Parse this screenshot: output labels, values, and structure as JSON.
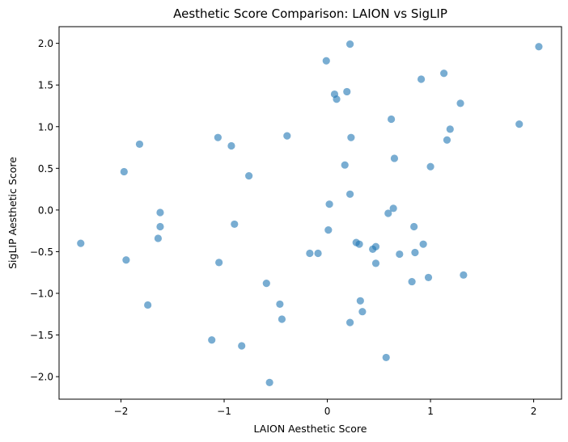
{
  "chart_data": {
    "type": "scatter",
    "title": "Aesthetic Score Comparison: LAION vs SigLIP",
    "xlabel": "LAION Aesthetic Score",
    "ylabel": "SigLIP Aesthetic Score",
    "xlim": [
      -2.6,
      2.27
    ],
    "ylim": [
      -2.27,
      2.2
    ],
    "xticks": [
      -2,
      -1,
      0,
      1,
      2
    ],
    "xtick_labels": [
      "−2",
      "−1",
      "0",
      "1",
      "2"
    ],
    "yticks": [
      -2.0,
      -1.5,
      -1.0,
      -0.5,
      0.0,
      0.5,
      1.0,
      1.5,
      2.0
    ],
    "ytick_labels": [
      "−2.0",
      "−1.5",
      "−1.0",
      "−0.5",
      "0.0",
      "0.5",
      "1.0",
      "1.5",
      "2.0"
    ],
    "grid": false,
    "legend": "none",
    "marker_color": "#1f77b4",
    "marker_alpha": 0.6,
    "points": [
      {
        "x": -2.39,
        "y": -0.4
      },
      {
        "x": -1.97,
        "y": 0.46
      },
      {
        "x": -1.95,
        "y": -0.6
      },
      {
        "x": -1.82,
        "y": 0.79
      },
      {
        "x": -1.74,
        "y": -1.14
      },
      {
        "x": -1.64,
        "y": -0.34
      },
      {
        "x": -1.62,
        "y": -0.2
      },
      {
        "x": -1.62,
        "y": -0.03
      },
      {
        "x": -1.12,
        "y": -1.56
      },
      {
        "x": -1.06,
        "y": 0.87
      },
      {
        "x": -1.05,
        "y": -0.63
      },
      {
        "x": -0.93,
        "y": 0.77
      },
      {
        "x": -0.9,
        "y": -0.17
      },
      {
        "x": -0.83,
        "y": -1.63
      },
      {
        "x": -0.76,
        "y": 0.41
      },
      {
        "x": -0.59,
        "y": -0.88
      },
      {
        "x": -0.56,
        "y": -2.07
      },
      {
        "x": -0.46,
        "y": -1.13
      },
      {
        "x": -0.44,
        "y": -1.31
      },
      {
        "x": -0.39,
        "y": 0.89
      },
      {
        "x": -0.17,
        "y": -0.52
      },
      {
        "x": -0.09,
        "y": -0.52
      },
      {
        "x": -0.01,
        "y": 1.79
      },
      {
        "x": 0.01,
        "y": -0.24
      },
      {
        "x": 0.02,
        "y": 0.07
      },
      {
        "x": 0.07,
        "y": 1.39
      },
      {
        "x": 0.09,
        "y": 1.33
      },
      {
        "x": 0.17,
        "y": 0.54
      },
      {
        "x": 0.19,
        "y": 1.42
      },
      {
        "x": 0.22,
        "y": 1.99
      },
      {
        "x": 0.22,
        "y": 0.19
      },
      {
        "x": 0.23,
        "y": 0.87
      },
      {
        "x": 0.22,
        "y": -1.35
      },
      {
        "x": 0.28,
        "y": -0.39
      },
      {
        "x": 0.31,
        "y": -0.41
      },
      {
        "x": 0.32,
        "y": -1.09
      },
      {
        "x": 0.34,
        "y": -1.22
      },
      {
        "x": 0.44,
        "y": -0.47
      },
      {
        "x": 0.47,
        "y": -0.44
      },
      {
        "x": 0.47,
        "y": -0.64
      },
      {
        "x": 0.57,
        "y": -1.77
      },
      {
        "x": 0.59,
        "y": -0.04
      },
      {
        "x": 0.62,
        "y": 1.09
      },
      {
        "x": 0.64,
        "y": 0.02
      },
      {
        "x": 0.65,
        "y": 0.62
      },
      {
        "x": 0.7,
        "y": -0.53
      },
      {
        "x": 0.82,
        "y": -0.86
      },
      {
        "x": 0.84,
        "y": -0.2
      },
      {
        "x": 0.85,
        "y": -0.51
      },
      {
        "x": 0.91,
        "y": 1.57
      },
      {
        "x": 0.93,
        "y": -0.41
      },
      {
        "x": 0.98,
        "y": -0.81
      },
      {
        "x": 1.0,
        "y": 0.52
      },
      {
        "x": 1.13,
        "y": 1.64
      },
      {
        "x": 1.16,
        "y": 0.84
      },
      {
        "x": 1.19,
        "y": 0.97
      },
      {
        "x": 1.29,
        "y": 1.28
      },
      {
        "x": 1.32,
        "y": -0.78
      },
      {
        "x": 1.86,
        "y": 1.03
      },
      {
        "x": 2.05,
        "y": 1.96
      }
    ]
  }
}
